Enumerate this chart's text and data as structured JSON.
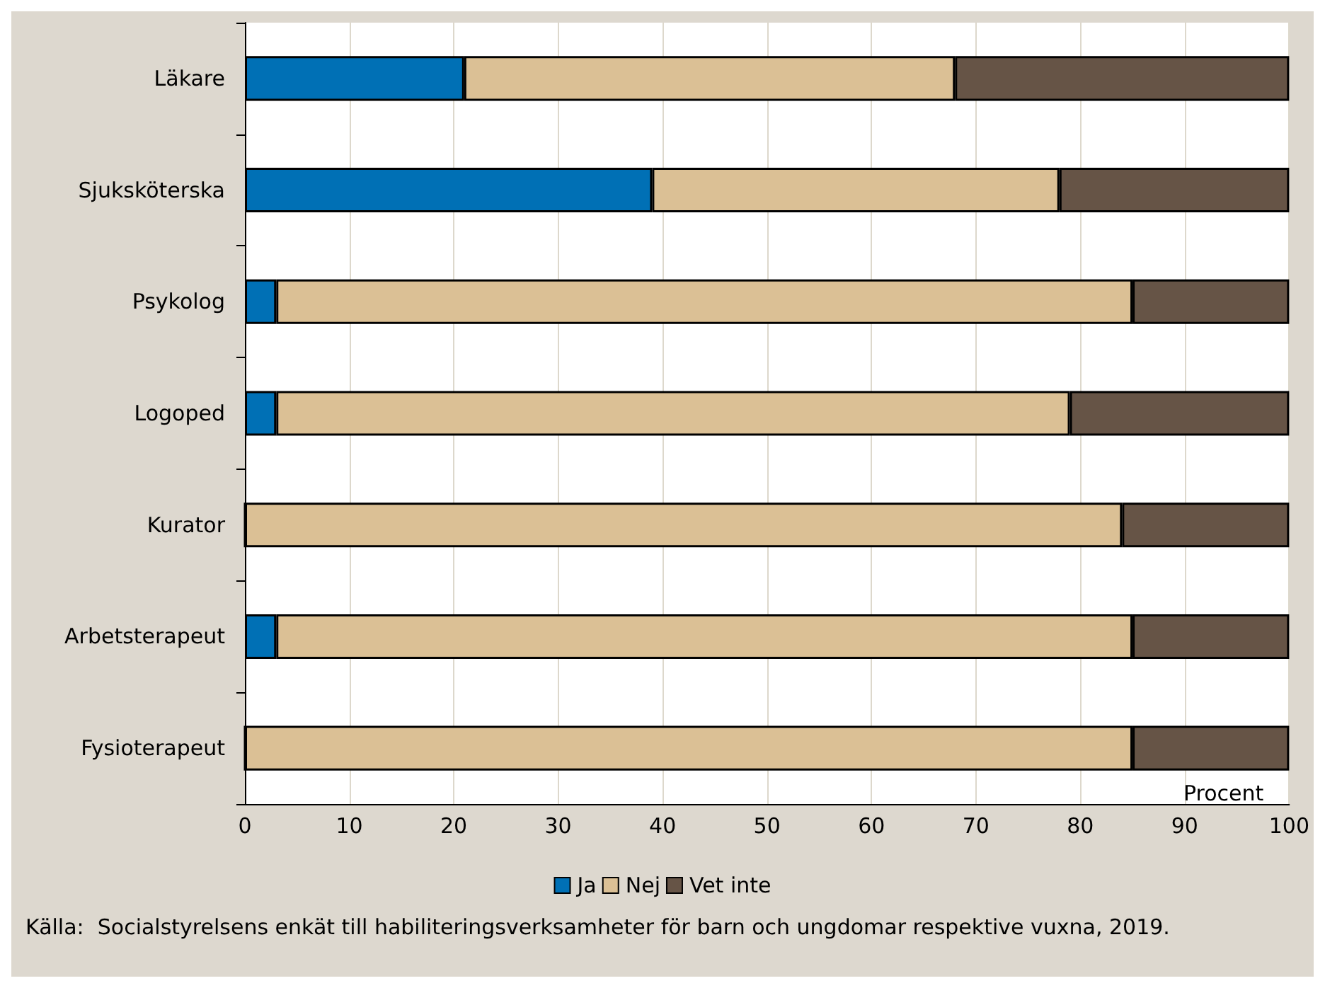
{
  "chart_data": {
    "type": "bar",
    "orientation": "horizontal",
    "stacked": true,
    "xlabel": "Procent",
    "categories": [
      "Läkare",
      "Sjuksköterska",
      "Psykolog",
      "Logoped",
      "Kurator",
      "Arbetsterapeut",
      "Fysioterapeut"
    ],
    "series": [
      {
        "name": "Ja",
        "color": "#0070b5",
        "values": [
          21,
          39,
          3,
          3,
          0,
          3,
          0
        ]
      },
      {
        "name": "Nej",
        "color": "#dbc095",
        "values": [
          47,
          39,
          82,
          76,
          84,
          82,
          85
        ]
      },
      {
        "name": "Vet inte",
        "color": "#665446",
        "values": [
          32,
          22,
          15,
          21,
          16,
          15,
          15
        ]
      }
    ],
    "xlim": [
      0,
      100
    ],
    "xticks": [
      0,
      10,
      20,
      30,
      40,
      50,
      60,
      70,
      80,
      90,
      100
    ],
    "grid": "x",
    "legend": "bottom",
    "annotations": [
      "Källa:  Socialstyrelsens enkät till habiliteringsverksamheter för barn och ungdomar respektive vuxna, 2019."
    ]
  }
}
